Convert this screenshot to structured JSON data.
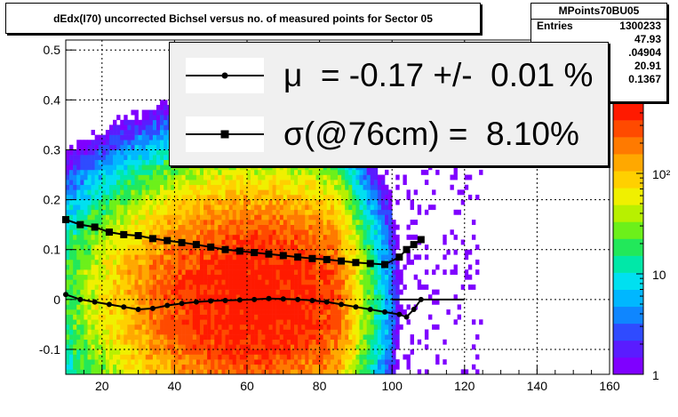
{
  "title": "dEdx(I70) uncorrected Bichsel versus no. of measured points for Sector 05",
  "stats": {
    "name": "MPoints70BU05",
    "rows": [
      {
        "label": "Entries",
        "value": "1300233"
      },
      {
        "label": "",
        "value": "47.93"
      },
      {
        "label": "",
        "value": ".04904"
      },
      {
        "label": "",
        "value": "20.91"
      },
      {
        "label": "",
        "value": "0.1367"
      }
    ]
  },
  "legend": {
    "mu_label": "μ  = -0.17 +/-  0.01 %",
    "sigma_label": "σ(@76cm) =  8.10%"
  },
  "colors": {
    "mean_marker": "#000000",
    "sigma_marker": "#000000"
  },
  "chart_data": {
    "type": "heatmap",
    "title": "dEdx(I70) uncorrected Bichsel versus no. of measured points for Sector 05",
    "xlabel": "",
    "ylabel": "",
    "xlim": [
      10,
      160
    ],
    "ylim": [
      -0.15,
      0.52
    ],
    "xticks": [
      20,
      40,
      60,
      80,
      100,
      120,
      140,
      160
    ],
    "yticks": [
      -0.1,
      0,
      0.1,
      0.2,
      0.3,
      0.4,
      0.5
    ],
    "ytick_labels": [
      "-0.1",
      "0",
      "0.1",
      "0.2",
      "0.3",
      "0.4",
      "0.5"
    ],
    "grid": true,
    "colorbar": {
      "scale": "log",
      "range": [
        1,
        500
      ],
      "tick_labels": [
        "1",
        "10",
        "10²"
      ],
      "tick_values": [
        1,
        10,
        100
      ]
    },
    "series": [
      {
        "name": "μ",
        "marker": "dot",
        "x": [
          10,
          14,
          18,
          22,
          26,
          30,
          34,
          38,
          42,
          46,
          50,
          54,
          58,
          62,
          66,
          70,
          74,
          78,
          82,
          86,
          90,
          94,
          98,
          102,
          104,
          106,
          108
        ],
        "y": [
          0.01,
          0.0,
          -0.005,
          -0.01,
          -0.015,
          -0.02,
          -0.018,
          -0.012,
          -0.008,
          -0.005,
          -0.003,
          -0.002,
          -0.001,
          0.0,
          0.002,
          0.001,
          0.0,
          -0.002,
          -0.005,
          -0.01,
          -0.015,
          -0.02,
          -0.025,
          -0.03,
          -0.035,
          -0.02,
          0.0
        ]
      },
      {
        "name": "σ(@76cm)",
        "marker": "square",
        "x": [
          10,
          14,
          18,
          22,
          26,
          30,
          34,
          38,
          42,
          46,
          50,
          54,
          58,
          62,
          66,
          70,
          74,
          78,
          82,
          86,
          90,
          94,
          98,
          102,
          104,
          106,
          108
        ],
        "y": [
          0.16,
          0.15,
          0.145,
          0.135,
          0.13,
          0.128,
          0.122,
          0.118,
          0.114,
          0.11,
          0.105,
          0.1,
          0.097,
          0.094,
          0.091,
          0.088,
          0.085,
          0.082,
          0.08,
          0.077,
          0.074,
          0.072,
          0.07,
          0.085,
          0.1,
          0.11,
          0.12
        ]
      }
    ]
  }
}
